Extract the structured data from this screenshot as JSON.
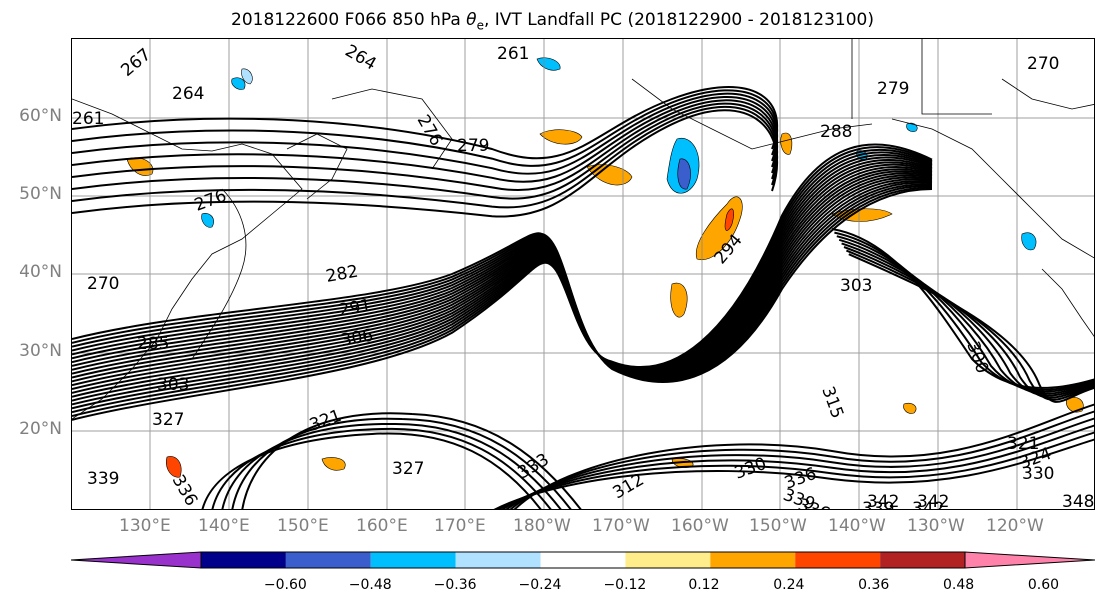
{
  "title_main": "2018122600 F066 850 hPa ",
  "title_var": "θ",
  "title_sub": "e",
  "title_rest": ", IVT Landfall PC (2018122900 - 2018123100)",
  "lat_labels": [
    "60°N",
    "50°N",
    "40°N",
    "30°N",
    "20°N"
  ],
  "lon_labels": [
    "130°E",
    "140°E",
    "150°E",
    "160°E",
    "170°E",
    "180°W",
    "170°W",
    "160°W",
    "150°W",
    "140°W",
    "130°W",
    "120°W"
  ],
  "contour_labels": [
    "267",
    "264",
    "261",
    "264",
    "261",
    "279",
    "288",
    "270",
    "279",
    "276",
    "282",
    "291",
    "306",
    "303",
    "294",
    "303",
    "318",
    "300",
    "309",
    "315",
    "327",
    "321",
    "324",
    "330",
    "336",
    "339",
    "342",
    "342",
    "348",
    "339",
    "336",
    "333",
    "327",
    "312",
    "321",
    "330",
    "336",
    "339",
    "342",
    "285",
    "276",
    "270"
  ],
  "colorbar": {
    "ticks": [
      "−0.60",
      "−0.48",
      "−0.36",
      "−0.24",
      "−0.12",
      "0.12",
      "0.24",
      "0.36",
      "0.48",
      "0.60"
    ],
    "colors": [
      "#9932cc",
      "#00008b",
      "#3a5fcd",
      "#00bfff",
      "#b0e2ff",
      "#ffffff",
      "#ffec8b",
      "#ffa500",
      "#ff4500",
      "#b22222",
      "#ff82ab"
    ]
  },
  "fill_colors": {
    "neg_strong": "#3a5fcd",
    "neg_mid": "#00bfff",
    "neg_weak": "#b0e2ff",
    "pos_weak": "#ffec8b",
    "pos_mid": "#ffa500",
    "pos_strong": "#ff4500",
    "pos_max": "#b22222"
  }
}
